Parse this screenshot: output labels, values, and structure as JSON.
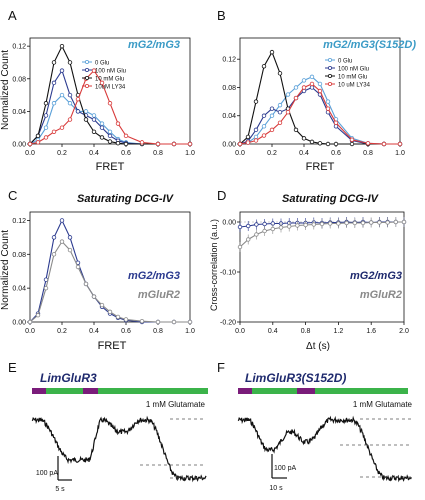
{
  "colors": {
    "black": "#111111",
    "blue": "#2b3a8f",
    "lightblue": "#5aa0d8",
    "red": "#d83a3a",
    "gray": "#8a8a8a",
    "title_cyan": "#3b9bc6",
    "title_navy": "#1f2a6e",
    "bar_green": "#3bb34a",
    "bar_purple": "#7a1c7a"
  },
  "panels": {
    "A": {
      "letter": "A",
      "title": "mG2/mG3",
      "xlabel": "FRET",
      "ylabel": "Normalized Count"
    },
    "B": {
      "letter": "B",
      "title": "mG2/mG3(S152D)",
      "xlabel": "FRET"
    },
    "C": {
      "letter": "C",
      "title": "Saturating DCG-IV",
      "xlabel": "FRET",
      "ylabel": "Normalized Count",
      "label1": "mG2/mG3",
      "label2": "mGluR2"
    },
    "D": {
      "letter": "D",
      "title": "Saturating DCG-IV",
      "xlabel": "Δt (s)",
      "ylabel": "Cross-correlation (a.u.)",
      "label1": "mG2/mG3",
      "label2": "mGluR2"
    },
    "E": {
      "letter": "E",
      "title": "LimGluR3",
      "glutamate": "1 mM Glutamate",
      "scale_y": "100 pA",
      "scale_x": "5 s"
    },
    "F": {
      "letter": "F",
      "title": "LimGluR3(S152D)",
      "glutamate": "1 mM Glutamate",
      "scale_y": "100 pA",
      "scale_x": "10 s"
    }
  },
  "chart_data": [
    {
      "panel": "A",
      "type": "line",
      "title": "mG2/mG3",
      "xlabel": "FRET",
      "ylabel": "Normalized Count",
      "xlim": [
        0.0,
        1.0
      ],
      "ylim": [
        0.0,
        0.13
      ],
      "xticks": [
        "0.0",
        "0.2",
        "0.4",
        "0.6",
        "0.8",
        "1.0"
      ],
      "yticks": [
        "0.00",
        "0.04",
        "0.08",
        "0.12"
      ],
      "legend": [
        "0 Glu",
        "100 nM Glu",
        "10 mM Glu",
        "10uM LY34"
      ],
      "x": [
        0.0,
        0.05,
        0.1,
        0.15,
        0.2,
        0.25,
        0.3,
        0.35,
        0.4,
        0.45,
        0.5,
        0.55,
        0.6,
        0.7,
        0.8,
        0.9,
        1.0
      ],
      "series": [
        {
          "name": "0 Glu",
          "color": "lightblue",
          "values": [
            0,
            0.005,
            0.02,
            0.05,
            0.06,
            0.05,
            0.04,
            0.04,
            0.035,
            0.025,
            0.015,
            0.006,
            0.002,
            0,
            0,
            0,
            0
          ]
        },
        {
          "name": "100 nM Glu",
          "color": "blue",
          "values": [
            0,
            0.01,
            0.035,
            0.075,
            0.09,
            0.06,
            0.04,
            0.035,
            0.03,
            0.02,
            0.01,
            0.004,
            0.001,
            0,
            0,
            0,
            0
          ]
        },
        {
          "name": "10 mM Glu",
          "color": "black",
          "values": [
            0,
            0.01,
            0.05,
            0.1,
            0.12,
            0.1,
            0.06,
            0.03,
            0.015,
            0.008,
            0.003,
            0.001,
            0,
            0,
            0,
            0,
            0
          ]
        },
        {
          "name": "10uM LY34",
          "color": "red",
          "values": [
            0,
            0.002,
            0.008,
            0.015,
            0.02,
            0.03,
            0.055,
            0.08,
            0.09,
            0.075,
            0.05,
            0.025,
            0.01,
            0.002,
            0,
            0,
            0
          ]
        }
      ]
    },
    {
      "panel": "B",
      "type": "line",
      "title": "mG2/mG3(S152D)",
      "xlabel": "FRET",
      "xlim": [
        0.0,
        1.0
      ],
      "ylim": [
        0.0,
        0.15
      ],
      "xticks": [
        "0.0",
        "0.2",
        "0.4",
        "0.6",
        "0.8",
        "1.0"
      ],
      "yticks": [
        "0.00",
        "0.04",
        "0.08",
        "0.12"
      ],
      "legend": [
        "0 Glu",
        "100 nM Glu",
        "10 mM Glu",
        "10 uM LY34"
      ],
      "x": [
        0.0,
        0.05,
        0.1,
        0.15,
        0.2,
        0.25,
        0.3,
        0.35,
        0.4,
        0.45,
        0.5,
        0.55,
        0.6,
        0.7,
        0.8,
        0.9,
        1.0
      ],
      "series": [
        {
          "name": "0 Glu",
          "color": "lightblue",
          "values": [
            0,
            0.002,
            0.01,
            0.025,
            0.04,
            0.055,
            0.07,
            0.08,
            0.09,
            0.095,
            0.085,
            0.06,
            0.035,
            0.008,
            0.001,
            0,
            0
          ]
        },
        {
          "name": "100 nM Glu",
          "color": "blue",
          "values": [
            0,
            0.004,
            0.02,
            0.04,
            0.05,
            0.045,
            0.05,
            0.065,
            0.075,
            0.08,
            0.07,
            0.045,
            0.025,
            0.005,
            0,
            0,
            0
          ]
        },
        {
          "name": "10 mM Glu",
          "color": "black",
          "values": [
            0,
            0.01,
            0.06,
            0.11,
            0.13,
            0.1,
            0.05,
            0.02,
            0.008,
            0.003,
            0.001,
            0,
            0,
            0,
            0,
            0,
            0
          ]
        },
        {
          "name": "10 uM LY34",
          "color": "red",
          "values": [
            0,
            0.002,
            0.005,
            0.012,
            0.02,
            0.03,
            0.045,
            0.065,
            0.08,
            0.085,
            0.075,
            0.05,
            0.03,
            0.006,
            0.001,
            0,
            0
          ]
        }
      ]
    },
    {
      "panel": "C",
      "type": "line",
      "title": "Saturating DCG-IV",
      "xlabel": "FRET",
      "ylabel": "Normalized Count",
      "xlim": [
        0.0,
        1.0
      ],
      "ylim": [
        0.0,
        0.13
      ],
      "xticks": [
        "0.0",
        "0.2",
        "0.4",
        "0.6",
        "0.8",
        "1.0"
      ],
      "yticks": [
        "0.00",
        "0.04",
        "0.08",
        "0.12"
      ],
      "x": [
        0.0,
        0.05,
        0.1,
        0.15,
        0.2,
        0.25,
        0.3,
        0.35,
        0.4,
        0.45,
        0.5,
        0.55,
        0.6,
        0.7,
        0.8,
        0.9,
        1.0
      ],
      "series": [
        {
          "name": "mG2/mG3",
          "color": "blue",
          "values": [
            0,
            0.01,
            0.05,
            0.1,
            0.12,
            0.1,
            0.07,
            0.045,
            0.03,
            0.018,
            0.01,
            0.005,
            0.002,
            0,
            0,
            0,
            0
          ]
        },
        {
          "name": "mGluR2",
          "color": "gray",
          "values": [
            0,
            0.008,
            0.04,
            0.08,
            0.095,
            0.085,
            0.065,
            0.045,
            0.03,
            0.02,
            0.012,
            0.006,
            0.003,
            0.001,
            0,
            0,
            0
          ]
        }
      ]
    },
    {
      "panel": "D",
      "type": "line",
      "title": "Saturating DCG-IV",
      "xlabel": "Δt (s)",
      "ylabel": "Cross-correlation (a.u.)",
      "xlim": [
        0.0,
        2.0
      ],
      "ylim": [
        -0.2,
        0.02
      ],
      "xticks": [
        "0.0",
        "0.4",
        "0.8",
        "1.2",
        "1.6",
        "2.0"
      ],
      "yticks": [
        "-0.20",
        "-0.10",
        "0.00"
      ],
      "x": [
        0.0,
        0.1,
        0.2,
        0.3,
        0.4,
        0.5,
        0.6,
        0.7,
        0.8,
        0.9,
        1.0,
        1.1,
        1.2,
        1.3,
        1.4,
        1.5,
        1.6,
        1.7,
        1.8,
        1.9,
        2.0
      ],
      "series": [
        {
          "name": "mG2/mG3",
          "color": "blue",
          "values": [
            -0.01,
            -0.008,
            -0.005,
            -0.004,
            -0.003,
            -0.003,
            -0.002,
            -0.002,
            -0.002,
            -0.001,
            -0.002,
            -0.001,
            -0.001,
            0,
            -0.001,
            0,
            -0.001,
            0,
            0,
            0,
            0
          ]
        },
        {
          "name": "mGluR2",
          "color": "gray",
          "values": [
            -0.05,
            -0.035,
            -0.025,
            -0.018,
            -0.014,
            -0.011,
            -0.009,
            -0.007,
            -0.006,
            -0.005,
            -0.004,
            -0.003,
            -0.003,
            -0.002,
            -0.002,
            -0.002,
            -0.001,
            -0.001,
            -0.001,
            0,
            0
          ]
        }
      ]
    }
  ]
}
